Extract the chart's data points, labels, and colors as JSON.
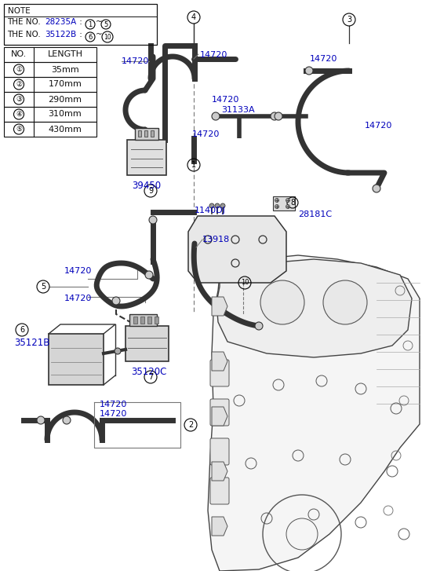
{
  "bg_color": "#ffffff",
  "fig_width": 5.38,
  "fig_height": 7.27,
  "dpi": 100,
  "blue": "#0000bb",
  "black": "#111111",
  "dark": "#333333",
  "gray": "#777777",
  "light": "#cccccc",
  "table_rows": [
    [
      "①",
      "35mm"
    ],
    [
      "②",
      "170mm"
    ],
    [
      "③",
      "290mm"
    ],
    [
      "④",
      "310mm"
    ],
    [
      "⑤",
      "430mm"
    ]
  ]
}
